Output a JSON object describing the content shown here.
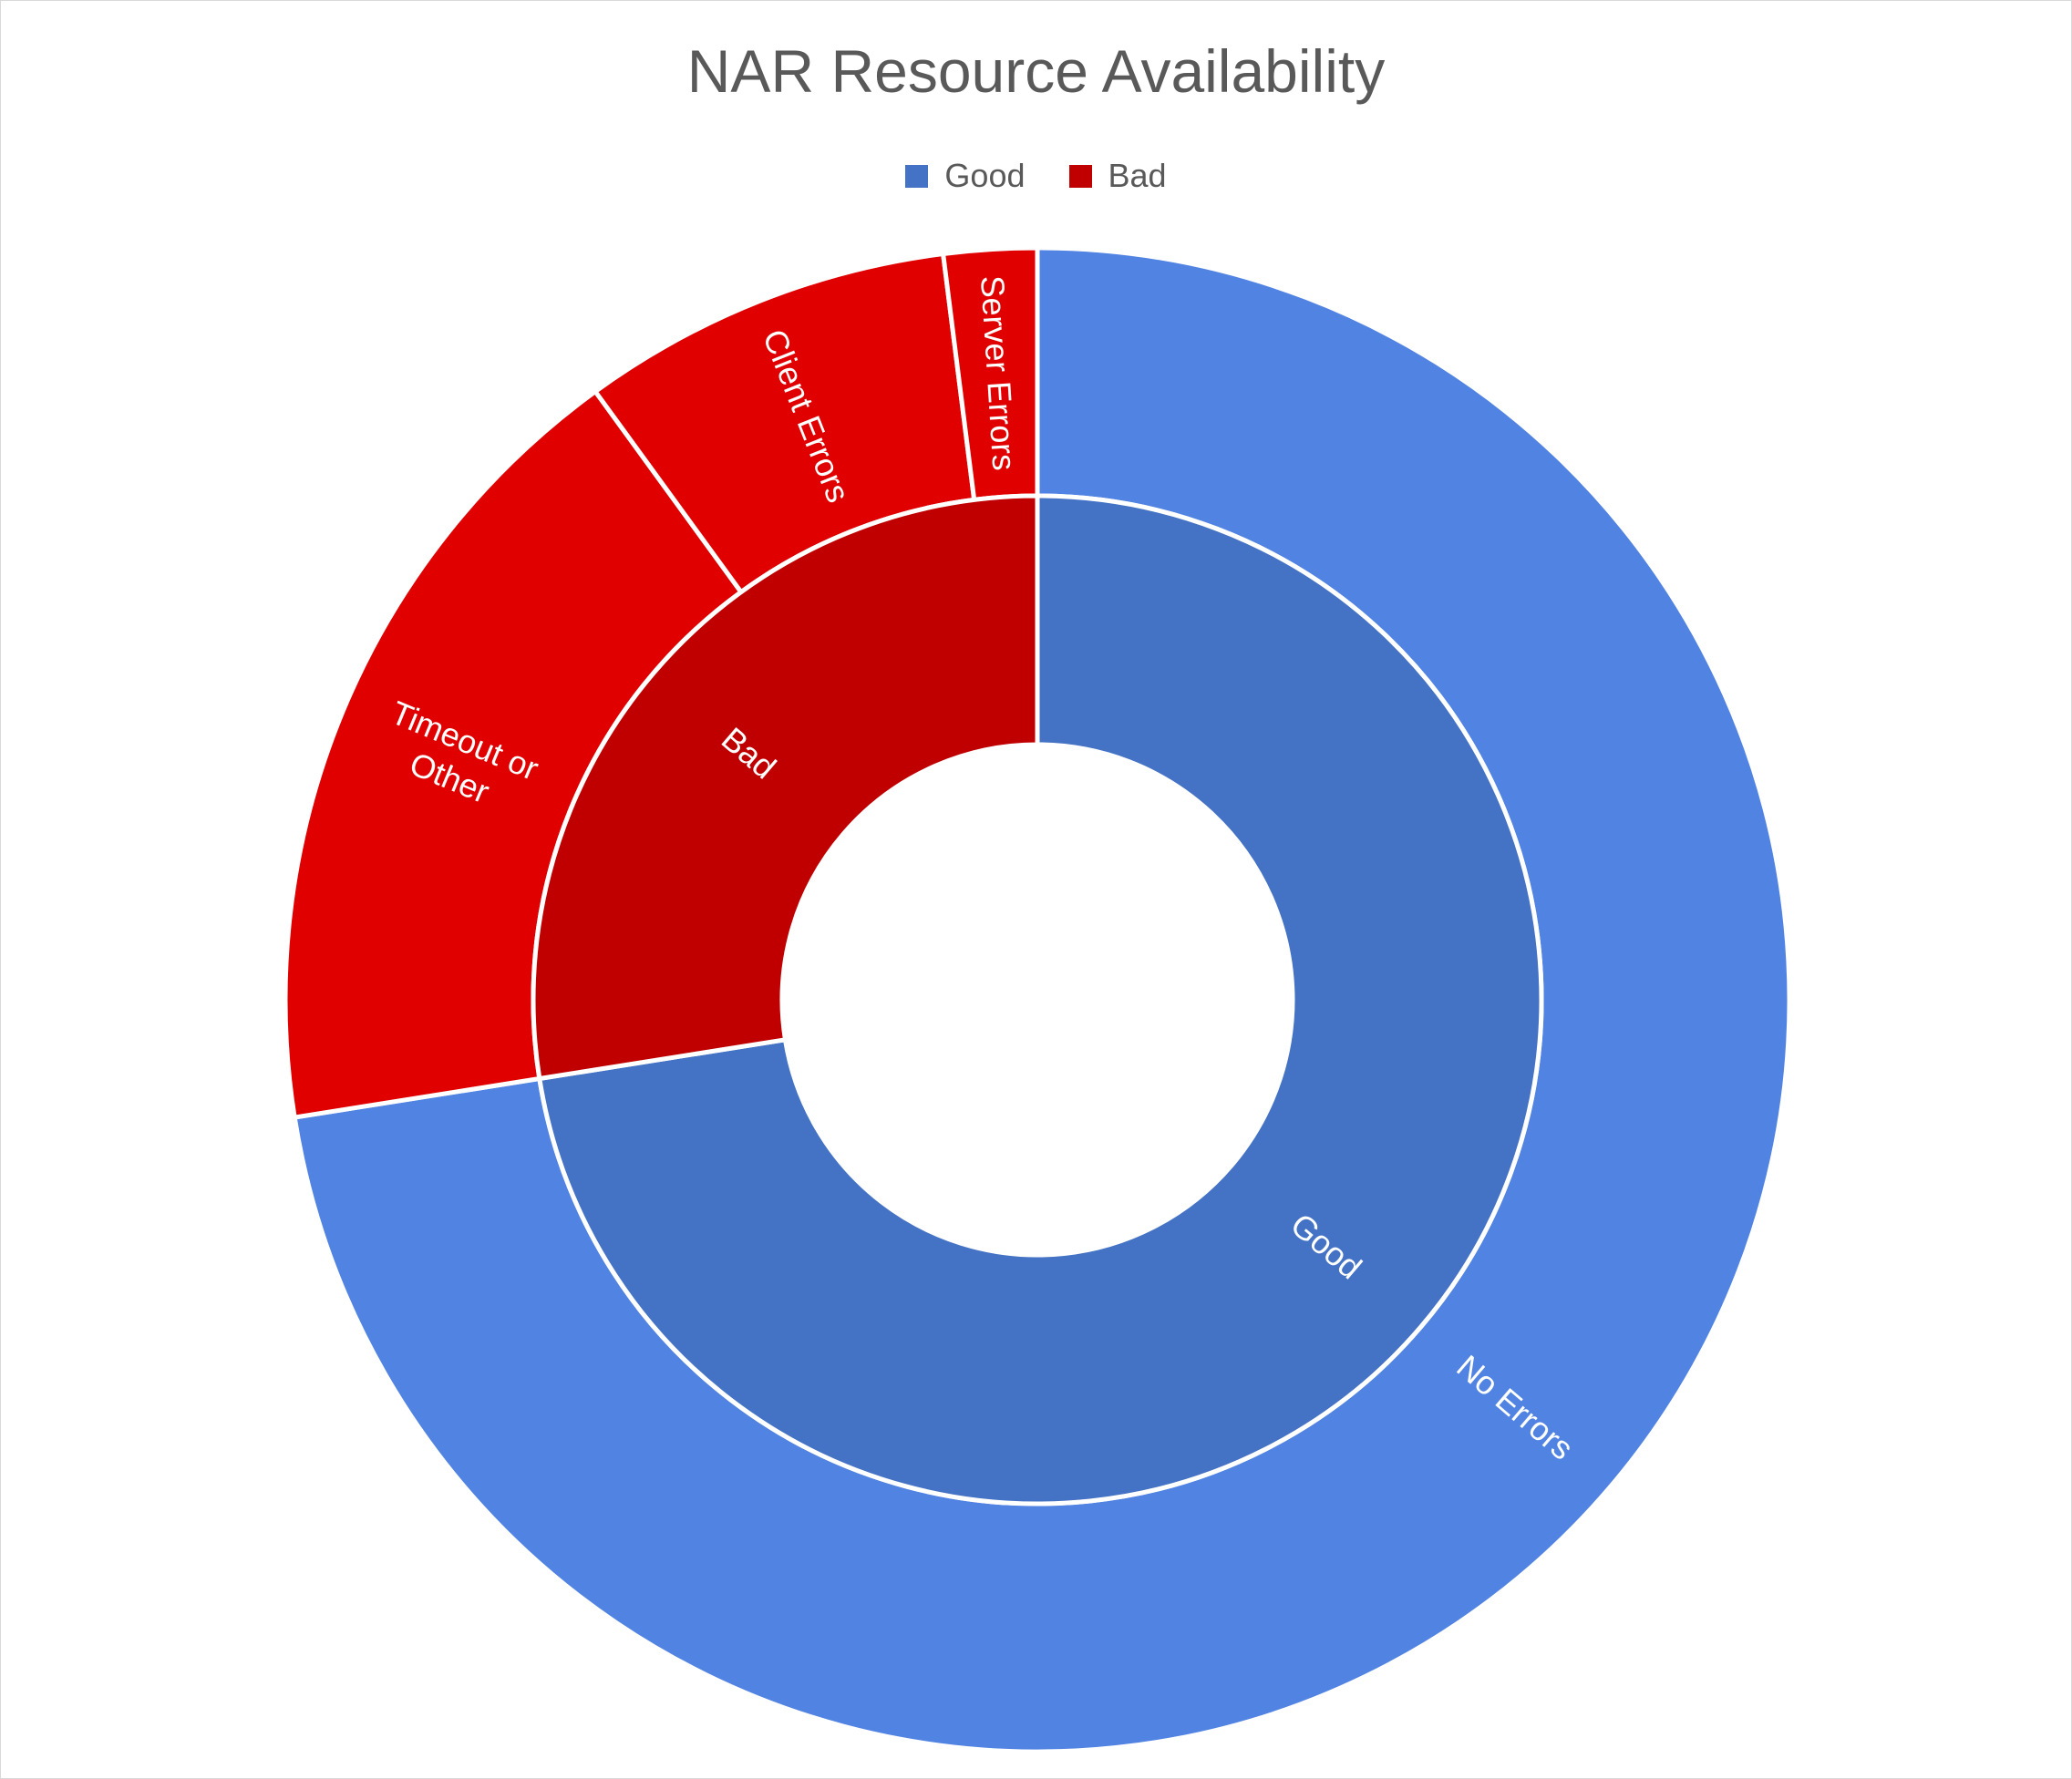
{
  "chart_data": {
    "type": "sunburst",
    "title": "NAR Resource Availability",
    "legend": {
      "placement": "top",
      "entries": [
        {
          "label": "Good",
          "color": "#4472c4"
        },
        {
          "label": "Bad",
          "color": "#c00000"
        }
      ]
    },
    "inner_ring": [
      {
        "label": "Good",
        "value": 72.5,
        "color": "#4472c4"
      },
      {
        "label": "Bad",
        "value": 27.5,
        "color": "#c00000"
      }
    ],
    "outer_ring": [
      {
        "label": "No Errors",
        "parent": "Good",
        "value": 72.5,
        "color": "#5183e2"
      },
      {
        "label": "Timeout or Other",
        "label_lines": [
          "Timeout or",
          "Other"
        ],
        "parent": "Bad",
        "value": 17.5,
        "color": "#e00000"
      },
      {
        "label": "Client Errors",
        "parent": "Bad",
        "value": 8.0,
        "color": "#e00000"
      },
      {
        "label": "Server Errors",
        "parent": "Bad",
        "value": 2.0,
        "color": "#e00000"
      }
    ]
  }
}
